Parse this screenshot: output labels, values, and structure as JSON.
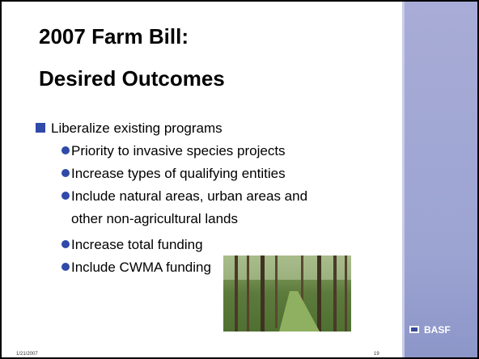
{
  "slide": {
    "title": [
      "2007 Farm Bill:",
      "Desired Outcomes"
    ],
    "bullet": "Liberalize existing programs",
    "sub_bullets": [
      [
        "Priority to invasive species projects"
      ],
      [
        "Increase types of qualifying entities"
      ],
      [
        "Include natural areas, urban areas and",
        "other non-agricultural lands"
      ],
      [
        "Increase total funding"
      ],
      [
        "Include CWMA funding"
      ]
    ],
    "footer": {
      "date": "1/21/2007",
      "page": "19"
    },
    "logo": "BASF"
  }
}
